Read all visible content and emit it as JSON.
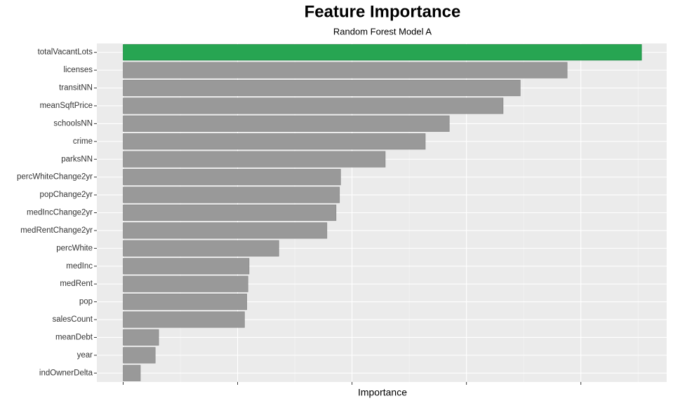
{
  "chart_data": {
    "type": "barh",
    "title": "Feature Importance",
    "subtitle": "Random Forest Model A",
    "x_label": "Importance",
    "categories": [
      "totalVacantLots",
      "licenses",
      "transitNN",
      "meanSqftPrice",
      "schoolsNN",
      "crime",
      "parksNN",
      "percWhiteChange2yr",
      "popChange2yr",
      "medIncChange2yr",
      "medRentChange2yr",
      "percWhite",
      "medInc",
      "medRent",
      "pop",
      "salesCount",
      "meanDebt",
      "year",
      "indOwnerDelta"
    ],
    "values": [
      4.53,
      3.88,
      3.47,
      3.32,
      2.85,
      2.64,
      2.29,
      1.9,
      1.89,
      1.86,
      1.78,
      1.36,
      1.1,
      1.09,
      1.08,
      1.06,
      0.31,
      0.28,
      0.15
    ],
    "colors": [
      "#27a552",
      "#999999",
      "#999999",
      "#999999",
      "#999999",
      "#999999",
      "#999999",
      "#999999",
      "#999999",
      "#999999",
      "#999999",
      "#999999",
      "#999999",
      "#999999",
      "#999999",
      "#999999",
      "#999999",
      "#999999",
      "#999999"
    ],
    "xlim": [
      -0.23,
      4.75
    ],
    "xticks": [
      0,
      1,
      2,
      3,
      4
    ],
    "minor_xticks": [
      0.5,
      1.5,
      2.5,
      3.5,
      4.5
    ],
    "grid": true
  }
}
